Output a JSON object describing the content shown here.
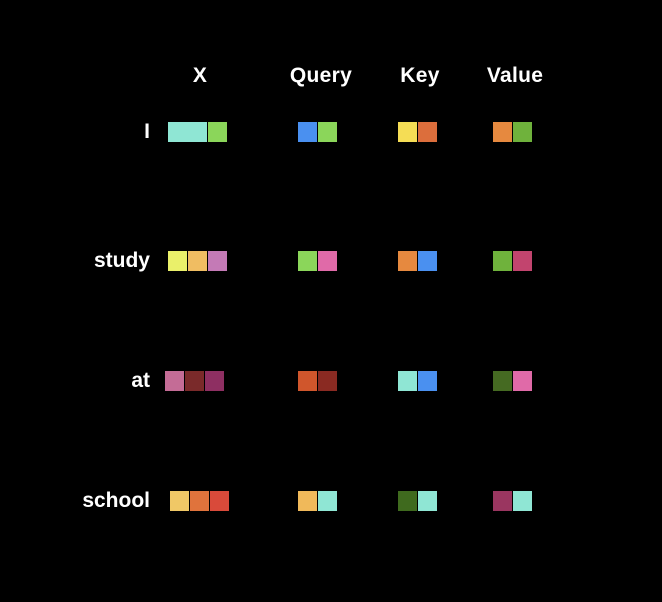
{
  "headers": {
    "x": "X",
    "query": "Query",
    "key": "Key",
    "value": "Value"
  },
  "rows": [
    {
      "word": "I",
      "x": [
        "#8fe6d4",
        "#8bd65a"
      ],
      "query": [
        "#4a90f0",
        "#8bd65a"
      ],
      "key": [
        "#f5dd55",
        "#dc6e3c"
      ],
      "value": [
        "#e6893f",
        "#6fb23c"
      ]
    },
    {
      "word": "study",
      "x": [
        "#eaf06a",
        "#f0bd62",
        "#c47ab6"
      ],
      "query": [
        "#8bd65a",
        "#e06aa8"
      ],
      "key": [
        "#e6893f",
        "#4a90f0"
      ],
      "value": [
        "#6fb23c",
        "#c2446e"
      ]
    },
    {
      "word": "at",
      "x": [
        "#c46c96",
        "#7a2a2a",
        "#8e2f62"
      ],
      "query": [
        "#d0562c",
        "#8a2a22"
      ],
      "key": [
        "#8fe6d4",
        "#4a90f0"
      ],
      "value": [
        "#456a22",
        "#e06aa8"
      ]
    },
    {
      "word": "school",
      "x": [
        "#f0c866",
        "#e0733c",
        "#d94a3a"
      ],
      "query": [
        "#f0b95a",
        "#8fe6d4"
      ],
      "key": [
        "#3f6a1e",
        "#8fe6d4"
      ],
      "value": [
        "#9a3660",
        "#8fe6d4"
      ]
    }
  ]
}
